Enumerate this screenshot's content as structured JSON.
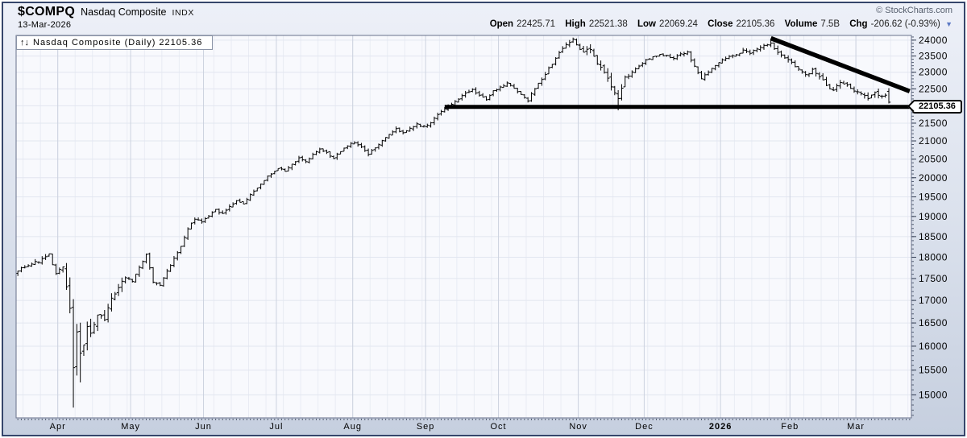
{
  "header": {
    "symbol": "$COMPQ",
    "name": "Nasdaq Composite",
    "exchange": "INDX",
    "date": "13-Mar-2026",
    "copyright": "© StockCharts.com",
    "quote": {
      "items": [
        {
          "label": "Open",
          "value": "22425.71"
        },
        {
          "label": "High",
          "value": "22521.38"
        },
        {
          "label": "Low",
          "value": "22069.24"
        },
        {
          "label": "Close",
          "value": "22105.36"
        },
        {
          "label": "Volume",
          "value": "7.5B"
        },
        {
          "label": "Chg",
          "value": "-206.62 (-0.93%)"
        }
      ],
      "direction_arrow": "▼",
      "direction": "down"
    }
  },
  "chart": {
    "overlay_icon": "↑↓",
    "overlay_label": "Nasdaq Composite (Daily) 22105.36",
    "last_price_label": "22105.36"
  },
  "chart_data": {
    "type": "ohlc",
    "title": "Nasdaq Composite (Daily)",
    "scale": "log",
    "grid": true,
    "y_range": [
      14550,
      24150
    ],
    "y_ticks": [
      15000,
      15500,
      16000,
      16500,
      17000,
      17500,
      18000,
      18500,
      19000,
      19500,
      20000,
      20500,
      21000,
      21500,
      22000,
      22500,
      23000,
      23500,
      24000
    ],
    "y_minor_step": 100,
    "total_slots": 258,
    "bars_count": 252,
    "months": [
      {
        "label": "Apr",
        "day": 12,
        "bold": false
      },
      {
        "label": "May",
        "day": 33,
        "bold": false
      },
      {
        "label": "Jun",
        "day": 54,
        "bold": false
      },
      {
        "label": "Jul",
        "day": 75,
        "bold": false
      },
      {
        "label": "Aug",
        "day": 97,
        "bold": false
      },
      {
        "label": "Sep",
        "day": 118,
        "bold": false
      },
      {
        "label": "Oct",
        "day": 139,
        "bold": false
      },
      {
        "label": "Nov",
        "day": 162,
        "bold": false
      },
      {
        "label": "Dec",
        "day": 181,
        "bold": false
      },
      {
        "label": "2026",
        "day": 203,
        "bold": true
      },
      {
        "label": "Feb",
        "day": 223,
        "bold": false
      },
      {
        "label": "Mar",
        "day": 242,
        "bold": false
      }
    ],
    "anchors": [
      [
        0,
        17700
      ],
      [
        3,
        17820
      ],
      [
        6,
        17900
      ],
      [
        9,
        18060
      ],
      [
        11,
        17600
      ],
      [
        13,
        17780
      ],
      [
        15,
        16900
      ],
      [
        16,
        15500
      ],
      [
        17,
        16300
      ],
      [
        18,
        15800
      ],
      [
        19,
        16020
      ],
      [
        20,
        16450
      ],
      [
        21,
        16200
      ],
      [
        23,
        16700
      ],
      [
        25,
        16560
      ],
      [
        27,
        17020
      ],
      [
        29,
        17260
      ],
      [
        31,
        17520
      ],
      [
        33,
        17430
      ],
      [
        35,
        17780
      ],
      [
        37,
        18060
      ],
      [
        39,
        17420
      ],
      [
        41,
        17330
      ],
      [
        43,
        17660
      ],
      [
        45,
        17960
      ],
      [
        47,
        18260
      ],
      [
        49,
        18700
      ],
      [
        51,
        18920
      ],
      [
        53,
        18860
      ],
      [
        55,
        19020
      ],
      [
        57,
        19160
      ],
      [
        59,
        19060
      ],
      [
        61,
        19260
      ],
      [
        63,
        19420
      ],
      [
        65,
        19320
      ],
      [
        67,
        19560
      ],
      [
        69,
        19720
      ],
      [
        71,
        19920
      ],
      [
        73,
        20120
      ],
      [
        75,
        20260
      ],
      [
        77,
        20160
      ],
      [
        79,
        20360
      ],
      [
        81,
        20520
      ],
      [
        83,
        20420
      ],
      [
        85,
        20620
      ],
      [
        87,
        20760
      ],
      [
        89,
        20660
      ],
      [
        91,
        20520
      ],
      [
        93,
        20720
      ],
      [
        95,
        20860
      ],
      [
        97,
        20960
      ],
      [
        99,
        20820
      ],
      [
        101,
        20620
      ],
      [
        103,
        20820
      ],
      [
        105,
        21020
      ],
      [
        107,
        21160
      ],
      [
        109,
        21320
      ],
      [
        111,
        21220
      ],
      [
        113,
        21360
      ],
      [
        115,
        21460
      ],
      [
        117,
        21420
      ],
      [
        119,
        21520
      ],
      [
        121,
        21720
      ],
      [
        123,
        21920
      ],
      [
        125,
        22060
      ],
      [
        127,
        22220
      ],
      [
        129,
        22360
      ],
      [
        131,
        22460
      ],
      [
        133,
        22320
      ],
      [
        135,
        22160
      ],
      [
        137,
        22420
      ],
      [
        139,
        22560
      ],
      [
        141,
        22660
      ],
      [
        143,
        22510
      ],
      [
        145,
        22310
      ],
      [
        147,
        22160
      ],
      [
        149,
        22510
      ],
      [
        151,
        22810
      ],
      [
        153,
        23110
      ],
      [
        155,
        23410
      ],
      [
        157,
        23760
      ],
      [
        159,
        23960
      ],
      [
        160,
        24000
      ],
      [
        161,
        23860
      ],
      [
        163,
        23610
      ],
      [
        165,
        23710
      ],
      [
        167,
        23310
      ],
      [
        169,
        23010
      ],
      [
        171,
        22610
      ],
      [
        173,
        22260
      ],
      [
        174,
        22560
      ],
      [
        175,
        22810
      ],
      [
        177,
        23010
      ],
      [
        179,
        23210
      ],
      [
        181,
        23360
      ],
      [
        183,
        23460
      ],
      [
        185,
        23560
      ],
      [
        187,
        23510
      ],
      [
        189,
        23410
      ],
      [
        191,
        23560
      ],
      [
        193,
        23610
      ],
      [
        195,
        23160
      ],
      [
        197,
        22810
      ],
      [
        199,
        23010
      ],
      [
        201,
        23210
      ],
      [
        203,
        23360
      ],
      [
        205,
        23460
      ],
      [
        207,
        23560
      ],
      [
        209,
        23660
      ],
      [
        211,
        23610
      ],
      [
        213,
        23710
      ],
      [
        215,
        23810
      ],
      [
        217,
        23900
      ],
      [
        219,
        23610
      ],
      [
        221,
        23410
      ],
      [
        223,
        23310
      ],
      [
        225,
        23110
      ],
      [
        227,
        22910
      ],
      [
        229,
        23060
      ],
      [
        231,
        22860
      ],
      [
        233,
        22610
      ],
      [
        235,
        22460
      ],
      [
        237,
        22710
      ],
      [
        239,
        22610
      ],
      [
        241,
        22460
      ],
      [
        243,
        22360
      ],
      [
        245,
        22210
      ],
      [
        247,
        22360
      ],
      [
        249,
        22310
      ],
      [
        250,
        22311.98
      ],
      [
        251,
        22105.36
      ]
    ],
    "volatility_zones": [
      {
        "from": 0,
        "to": 13,
        "pct": 0.006
      },
      {
        "from": 14,
        "to": 21,
        "pct": 0.02
      },
      {
        "from": 22,
        "to": 30,
        "pct": 0.011
      },
      {
        "from": 31,
        "to": 148,
        "pct": 0.005
      },
      {
        "from": 149,
        "to": 163,
        "pct": 0.006
      },
      {
        "from": 164,
        "to": 175,
        "pct": 0.01
      },
      {
        "from": 176,
        "to": 216,
        "pct": 0.005
      },
      {
        "from": 218,
        "to": 251,
        "pct": 0.007
      }
    ],
    "special_bars": {
      "16": {
        "low": 14750
      },
      "18": {
        "low": 15250
      },
      "160": {
        "high": 24080
      },
      "173": {
        "low": 21870
      },
      "217": {
        "high": 24050
      },
      "251": {
        "open": 22425.71,
        "high": 22521.38,
        "low": 22069.24,
        "close": 22105.36
      }
    },
    "trendlines": [
      {
        "name": "horizontal-support",
        "from_day": 123,
        "from_price": 21970,
        "to_day": 257,
        "to_price": 21970,
        "width": 5
      },
      {
        "name": "descending-resistance",
        "from_day": 217,
        "from_price": 24060,
        "to_day": 257,
        "to_price": 22430,
        "width": 5.5
      }
    ],
    "colors": {
      "bar": "#000000",
      "trendline": "#000000",
      "plot_bg": "#f8f9fd",
      "grid": "#e2e6f0",
      "grid_week": "#e9ecf4",
      "grid_month": "#ccd2df",
      "plot_border": "#68718a",
      "axis_text": "#000000",
      "tick": "#555f72"
    }
  }
}
